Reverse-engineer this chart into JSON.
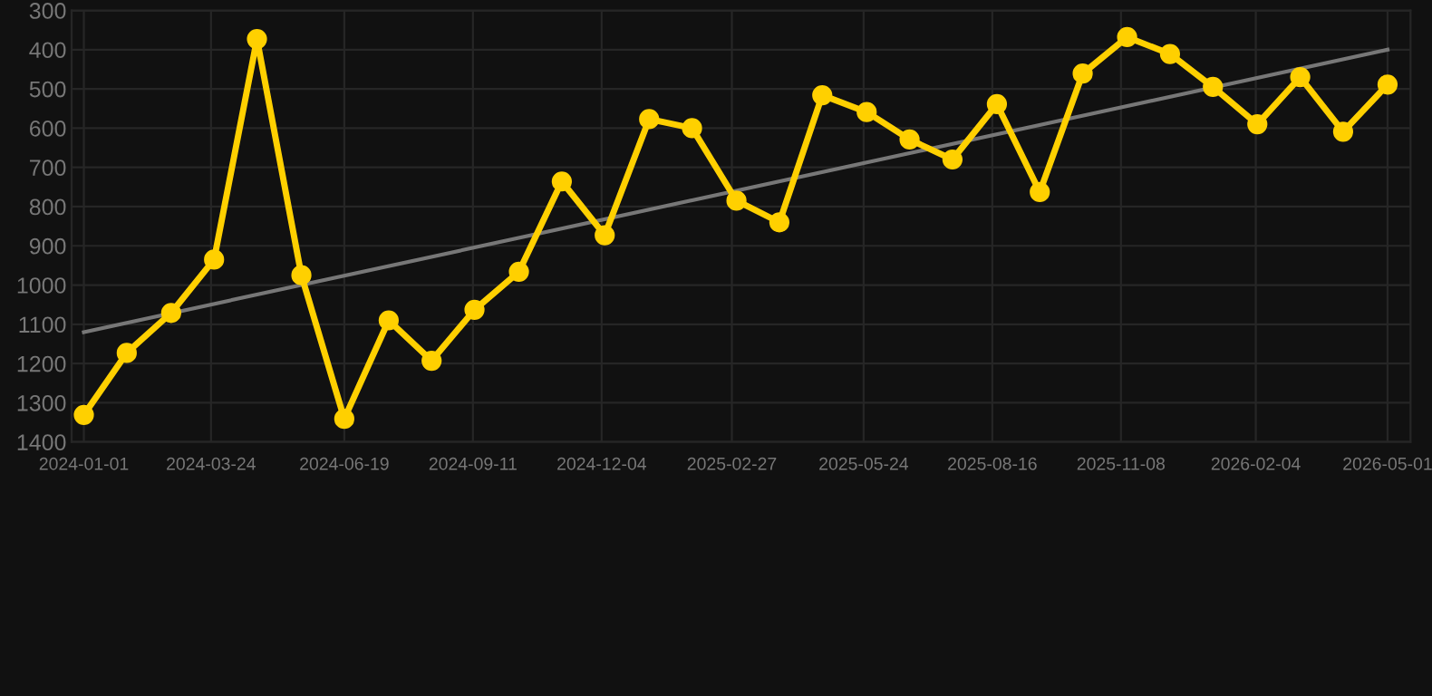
{
  "chart_data": {
    "type": "line",
    "x": [
      "2024-01-01",
      "2024-01-29",
      "2024-02-27",
      "2024-03-26",
      "2024-04-23",
      "2024-05-22",
      "2024-06-19",
      "2024-07-18",
      "2024-08-15",
      "2024-09-12",
      "2024-10-11",
      "2024-11-08",
      "2024-12-06",
      "2025-01-04",
      "2025-02-01",
      "2025-03-02",
      "2025-03-30",
      "2025-04-27",
      "2025-05-26",
      "2025-06-23",
      "2025-07-21",
      "2025-08-19",
      "2025-09-16",
      "2025-10-14",
      "2025-11-12",
      "2025-12-10",
      "2026-01-07",
      "2026-02-05",
      "2026-03-05",
      "2026-04-02",
      "2026-05-01"
    ],
    "series": [
      {
        "color": "#ffd000",
        "marker": "circle",
        "values": [
          1331,
          1173,
          1071,
          935,
          373,
          975,
          1341,
          1090,
          1193,
          1063,
          966,
          736,
          873,
          577,
          600,
          785,
          840,
          516,
          559,
          629,
          680,
          539,
          763,
          461,
          368,
          411,
          495,
          590,
          470,
          609,
          489
        ]
      },
      {
        "type": "line",
        "color": "#777777",
        "marker": "none",
        "x": [
          "2024-01-01",
          "2026-05-01"
        ],
        "values": [
          1120,
          400
        ]
      }
    ],
    "ylim": [
      1400,
      300
    ],
    "yticks": [
      300,
      400,
      500,
      600,
      700,
      800,
      900,
      1000,
      1100,
      1200,
      1300,
      1400
    ],
    "xlim": [
      "2023-12-24",
      "2026-05-16"
    ],
    "xticks": [
      "2024-01-01",
      "2024-03-24",
      "2024-06-19",
      "2024-09-11",
      "2024-12-04",
      "2025-02-27",
      "2025-05-24",
      "2025-08-16",
      "2025-11-08",
      "2026-02-04",
      "2026-05-01"
    ],
    "grid": true
  }
}
